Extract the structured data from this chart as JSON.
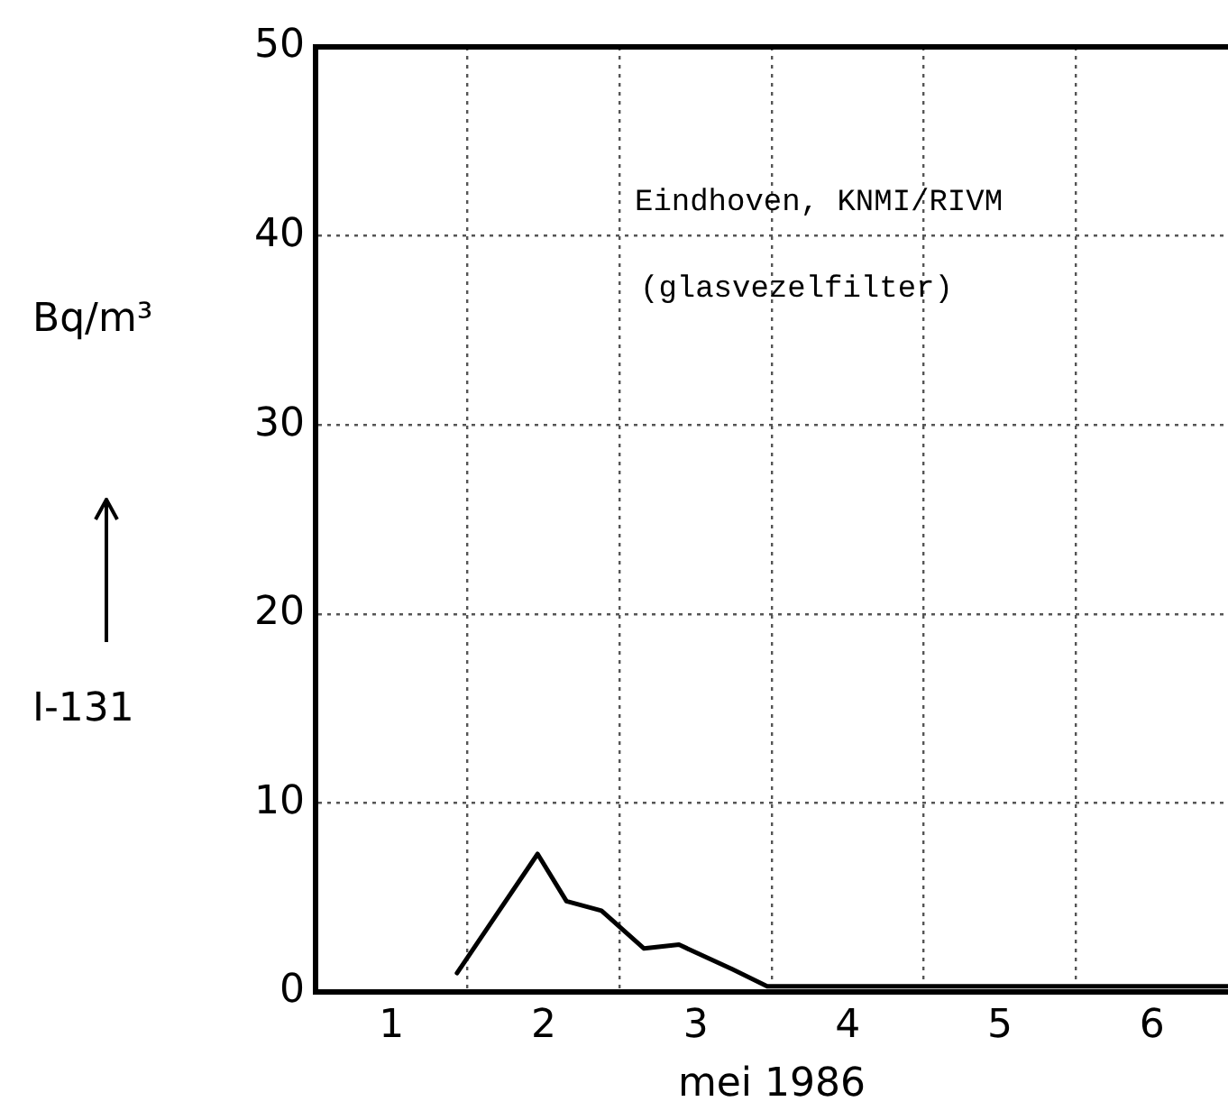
{
  "chart_data": {
    "type": "line",
    "xlabel": "mei 1986",
    "ylabel": "Bq/m³",
    "annotations": [
      "I-131",
      "Eindhoven, KNMI/RIVM",
      "(glasvezelfilter)"
    ],
    "x": [
      1.43,
      1.96,
      2.15,
      2.38,
      2.66,
      2.89,
      3.24,
      3.47,
      4.5,
      5.5,
      6.5
    ],
    "series": [
      {
        "color": "#000000",
        "values": [
          1.0,
          7.3,
          4.8,
          4.3,
          2.3,
          2.5,
          1.2,
          0.3,
          0.3,
          0.3,
          0.3
        ]
      }
    ],
    "xlim": [
      0.5,
      6.5
    ],
    "xticks": [
      1,
      2,
      3,
      4,
      5,
      6,
      {
        "value": 1.5,
        "label": null
      },
      {
        "value": 2.5,
        "label": null
      },
      {
        "value": 3.5,
        "label": null
      },
      {
        "value": 4.5,
        "label": null
      },
      {
        "value": 5.5,
        "label": null
      }
    ],
    "ylim": [
      0,
      50
    ],
    "yticks": [
      0,
      10,
      20,
      30,
      40,
      50
    ],
    "grid": true,
    "legend": false,
    "marker": "none",
    "line_style": "solid"
  }
}
